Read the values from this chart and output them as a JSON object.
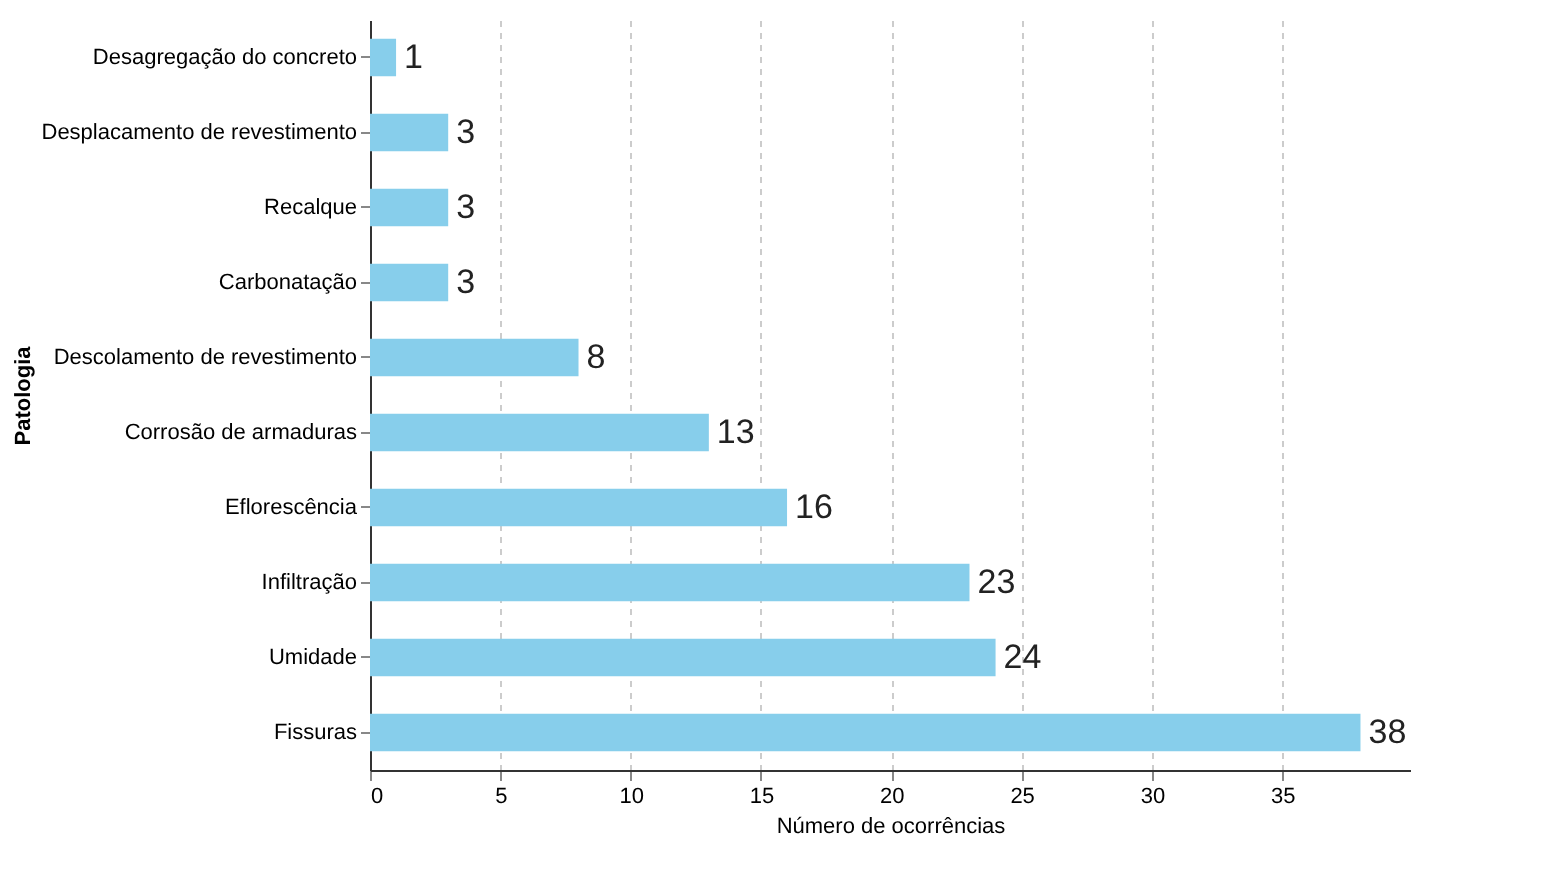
{
  "chart_data": {
    "type": "bar",
    "orientation": "horizontal",
    "xlabel": "Número de ocorrências",
    "ylabel": "Patologia",
    "categories": [
      "Desagregação do concreto",
      "Desplacamento de revestimento",
      "Recalque",
      "Carbonatação",
      "Descolamento  de revestimento",
      "Corrosão de armaduras",
      "Eflorescência",
      "Infiltração",
      "Umidade",
      "Fissuras"
    ],
    "values": [
      1,
      3,
      3,
      3,
      8,
      13,
      16,
      23,
      24,
      38
    ],
    "color": "#87ceeb",
    "xlim": [
      0,
      39.9
    ],
    "xticks": [
      0,
      5,
      10,
      15,
      20,
      25,
      30,
      35
    ],
    "grid": "x",
    "data_labels": true
  }
}
